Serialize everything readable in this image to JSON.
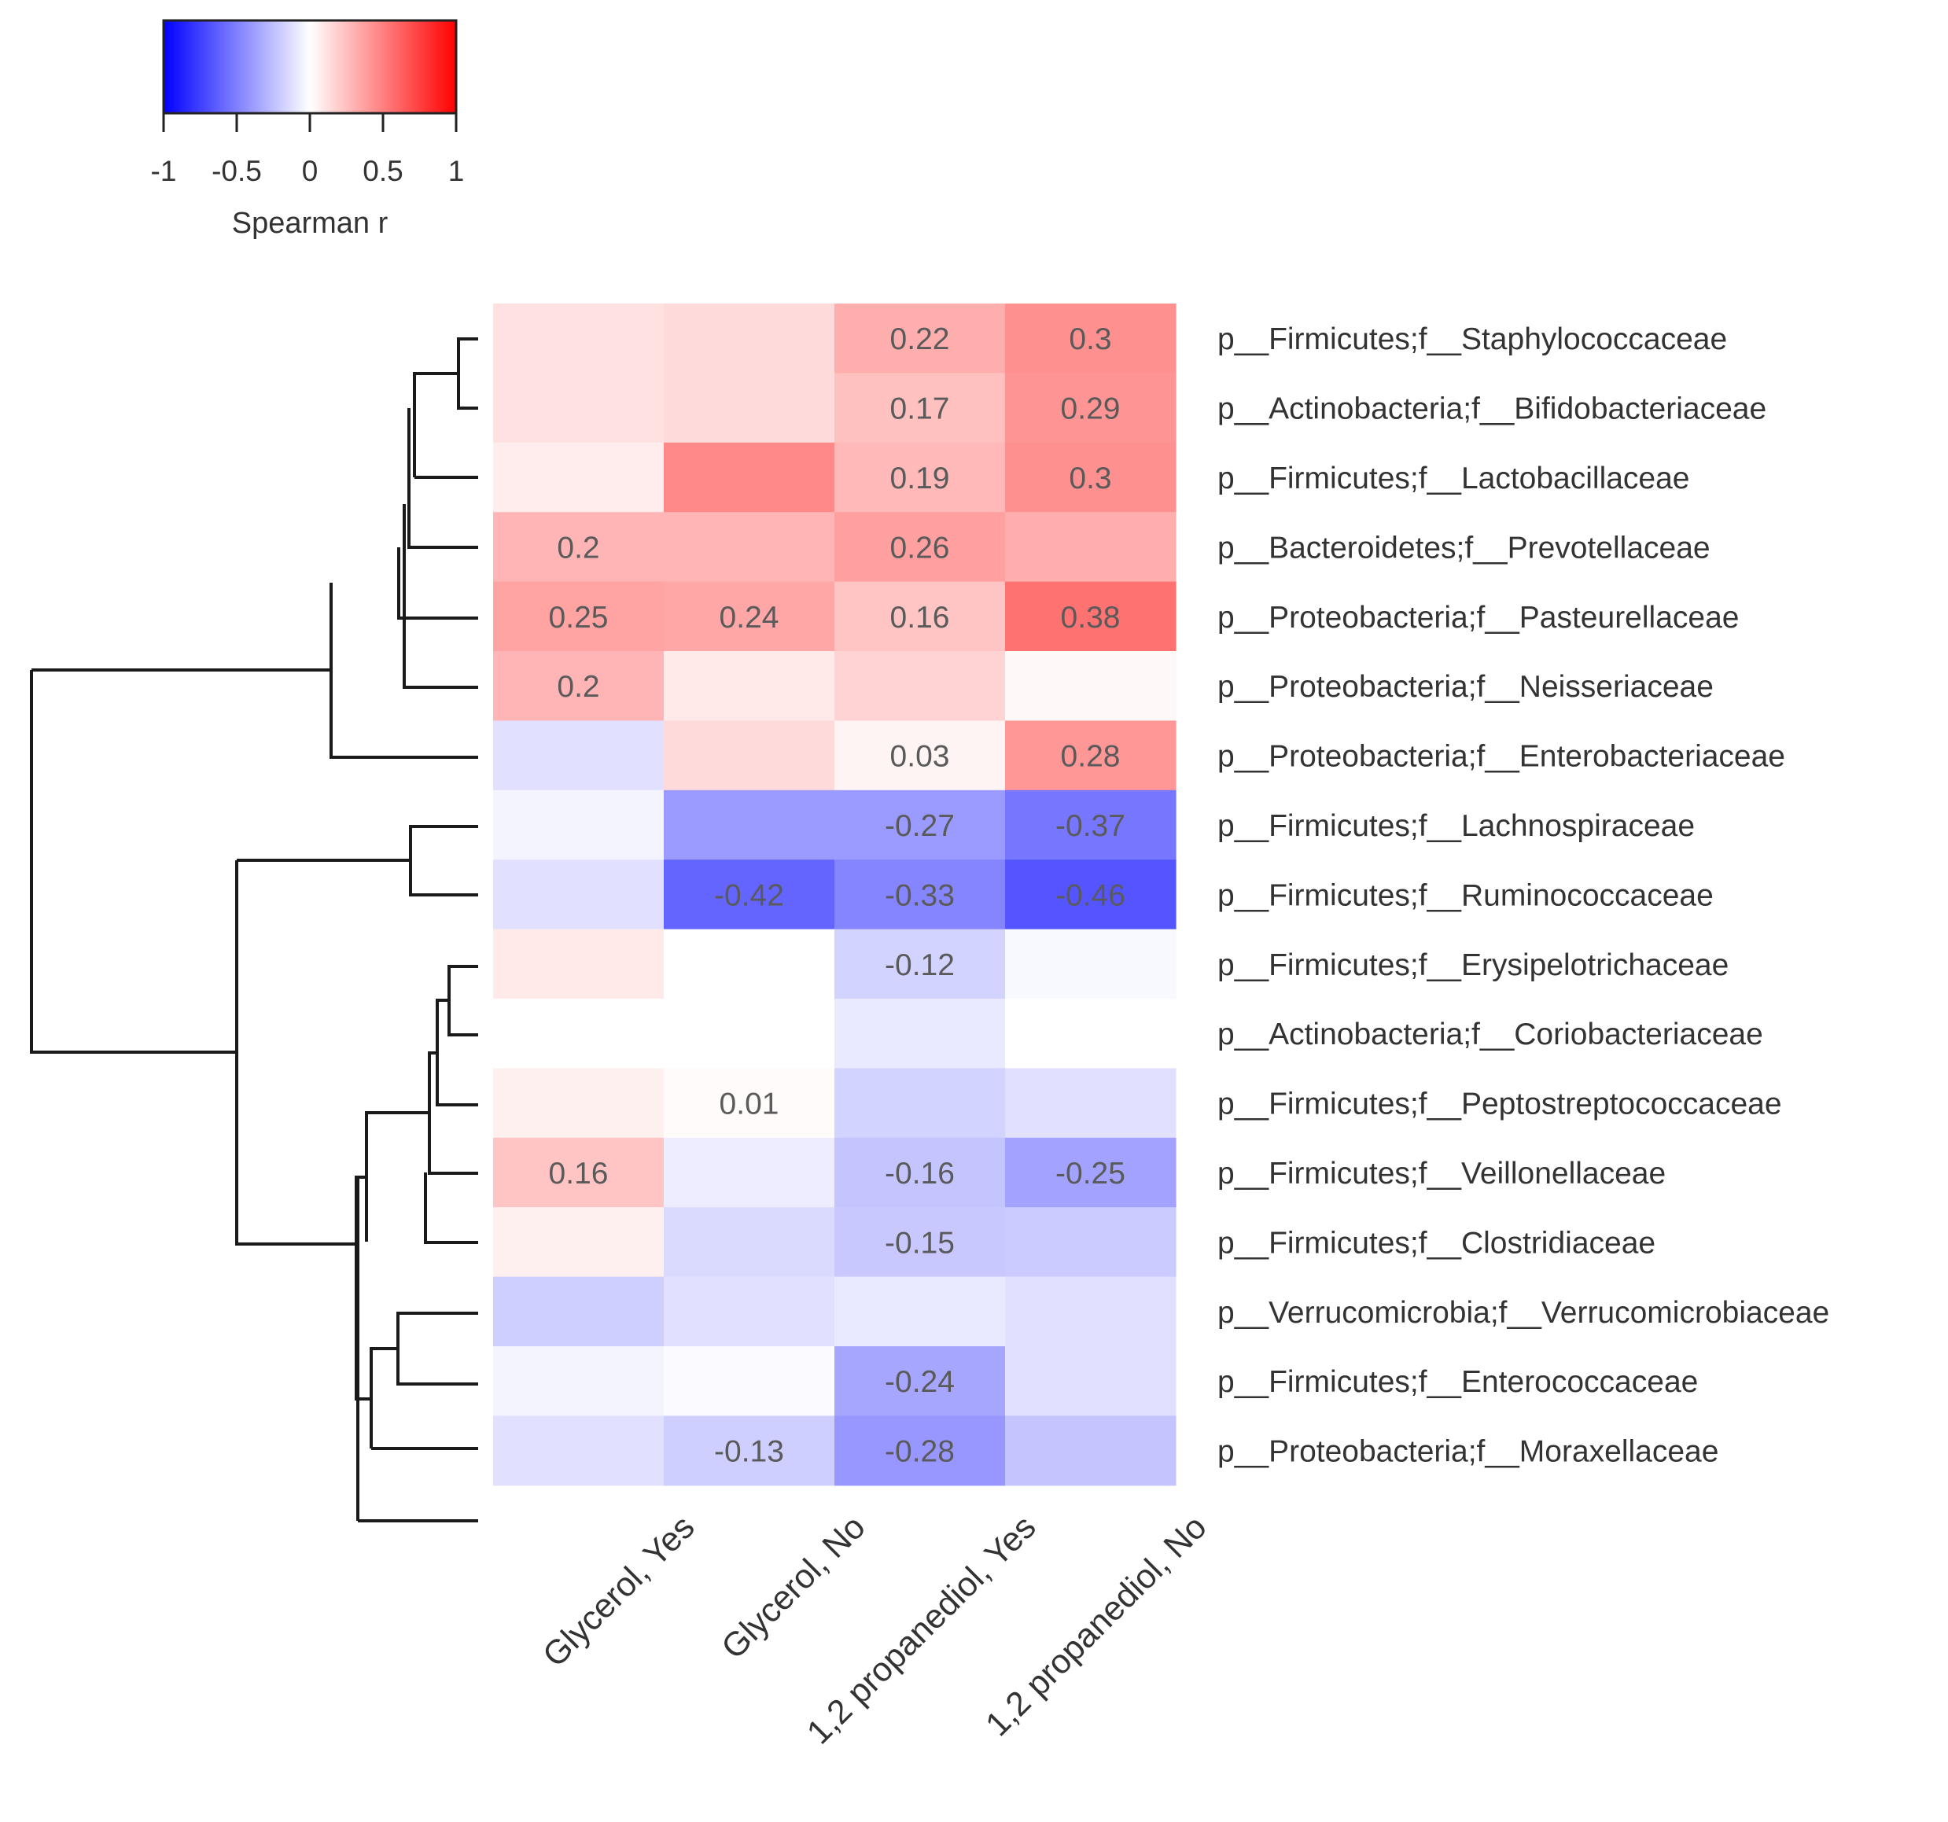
{
  "chart_data": {
    "type": "heatmap",
    "legend": {
      "title": "Spearman r",
      "ticks": [
        "-1",
        "-0.5",
        "0",
        "0.5",
        "1"
      ],
      "range": [
        -1,
        1
      ]
    },
    "colors": {
      "negative": "#0000ff",
      "zero": "#ffffff",
      "positive": "#ff0000"
    },
    "columns": [
      "Glycerol, Yes",
      "Glycerol, No",
      "1,2 propanediol, Yes",
      "1,2 propanediol, No"
    ],
    "rows": [
      "p__Firmicutes;f__Staphylococcaceae",
      "p__Actinobacteria;f__Bifidobacteriaceae",
      "p__Firmicutes;f__Lactobacillaceae",
      "p__Bacteroidetes;f__Prevotellaceae",
      "p__Proteobacteria;f__Pasteurellaceae",
      "p__Proteobacteria;f__Neisseriaceae",
      "p__Proteobacteria;f__Enterobacteriaceae",
      "p__Firmicutes;f__Lachnospiraceae",
      "p__Firmicutes;f__Ruminococcaceae",
      "p__Firmicutes;f__Erysipelotrichaceae",
      "p__Actinobacteria;f__Coriobacteriaceae",
      "p__Firmicutes;f__Peptostreptococcaceae",
      "p__Firmicutes;f__Veillonellaceae",
      "p__Firmicutes;f__Clostridiaceae",
      "p__Verrucomicrobia;f__Verrucomicrobiaceae",
      "p__Firmicutes;f__Enterococcaceae",
      "p__Proteobacteria;f__Moraxellaceae"
    ],
    "values": [
      [
        0.08,
        0.1,
        0.22,
        0.3
      ],
      [
        0.08,
        0.1,
        0.17,
        0.29
      ],
      [
        0.05,
        0.32,
        0.19,
        0.3
      ],
      [
        0.2,
        0.2,
        0.26,
        0.22
      ],
      [
        0.25,
        0.24,
        0.16,
        0.38
      ],
      [
        0.2,
        0.06,
        0.12,
        0.02
      ],
      [
        -0.08,
        0.1,
        0.03,
        0.28
      ],
      [
        -0.03,
        -0.27,
        -0.27,
        -0.37
      ],
      [
        -0.08,
        -0.42,
        -0.33,
        -0.46
      ],
      [
        0.06,
        0.0,
        -0.12,
        -0.02
      ],
      [
        0.0,
        0.0,
        -0.06,
        0.0
      ],
      [
        0.04,
        0.01,
        -0.12,
        -0.08
      ],
      [
        0.16,
        -0.05,
        -0.16,
        -0.25
      ],
      [
        0.04,
        -0.1,
        -0.15,
        -0.14
      ],
      [
        -0.13,
        -0.08,
        -0.06,
        -0.08
      ],
      [
        -0.03,
        -0.01,
        -0.24,
        -0.08
      ],
      [
        -0.08,
        -0.13,
        -0.28,
        -0.16
      ]
    ],
    "cell_labels": [
      [
        "",
        "",
        "0.22",
        "0.3"
      ],
      [
        "",
        "",
        "0.17",
        "0.29"
      ],
      [
        "",
        "",
        "0.19",
        "0.3"
      ],
      [
        "0.2",
        "",
        "0.26",
        ""
      ],
      [
        "0.25",
        "0.24",
        "0.16",
        "0.38"
      ],
      [
        "0.2",
        "",
        "",
        ""
      ],
      [
        "",
        "",
        "0.03",
        "0.28"
      ],
      [
        "",
        "",
        "-0.27",
        "-0.37"
      ],
      [
        "",
        "-0.42",
        "-0.33",
        "-0.46"
      ],
      [
        "",
        "",
        "-0.12",
        ""
      ],
      [
        "",
        "",
        "",
        ""
      ],
      [
        "",
        "0.01",
        "",
        ""
      ],
      [
        "0.16",
        "",
        "-0.16",
        "-0.25"
      ],
      [
        "",
        "",
        "-0.15",
        ""
      ],
      [
        "",
        "",
        "",
        ""
      ],
      [
        "",
        "",
        "-0.24",
        ""
      ],
      [
        "",
        "-0.13",
        "-0.28",
        ""
      ]
    ],
    "dendrogram": "row clustering tree drawn left of the heatmap"
  }
}
